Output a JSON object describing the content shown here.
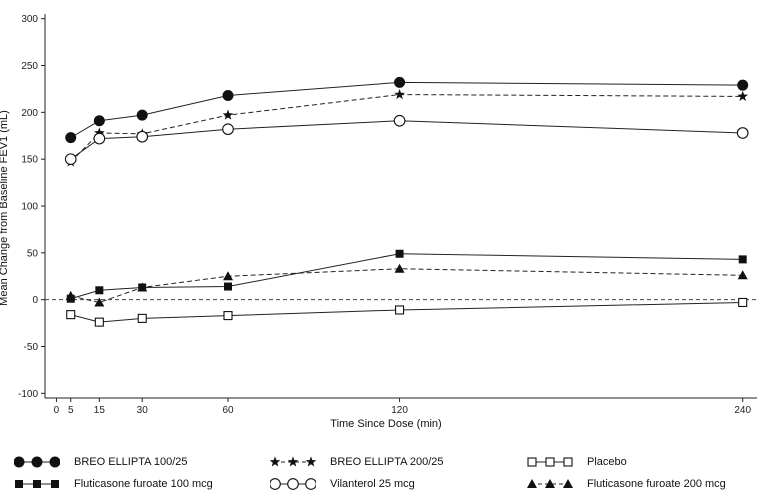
{
  "chart_data": {
    "type": "line",
    "title": "",
    "xlabel": "Time Since Dose (min)",
    "ylabel": "Mean Change from Baseline FEV1 (mL)",
    "x_ticks": [
      0,
      5,
      15,
      30,
      60,
      120,
      240
    ],
    "y_ticks": [
      -100,
      -50,
      0,
      50,
      100,
      150,
      200,
      250,
      300
    ],
    "xlim": [
      -4,
      245
    ],
    "ylim": [
      -105,
      305
    ],
    "grid": false,
    "zero_reference_line": true,
    "legend_position": "bottom",
    "x": [
      5,
      15,
      30,
      60,
      120,
      240
    ],
    "series": [
      {
        "name": "BREO ELLIPTA 100/25",
        "marker": "filled-circle",
        "line": "solid",
        "values": [
          173,
          191,
          197,
          218,
          232,
          229
        ]
      },
      {
        "name": "BREO ELLIPTA 200/25",
        "marker": "star",
        "line": "dashed",
        "values": [
          147,
          178,
          177,
          197,
          219,
          217
        ]
      },
      {
        "name": "Placebo",
        "marker": "open-square",
        "line": "solid",
        "values": [
          -16,
          -24,
          -20,
          -17,
          -11,
          -3
        ]
      },
      {
        "name": "Fluticasone furoate 100 mcg",
        "marker": "filled-square",
        "line": "solid",
        "values": [
          1,
          10,
          13,
          14,
          49,
          43
        ]
      },
      {
        "name": "Vilanterol 25 mcg",
        "marker": "open-circle",
        "line": "solid",
        "values": [
          150,
          172,
          174,
          182,
          191,
          178
        ]
      },
      {
        "name": "Fluticasone furoate 200 mcg",
        "marker": "filled-triangle",
        "line": "dashed",
        "values": [
          4,
          -3,
          13,
          25,
          33,
          26
        ]
      }
    ]
  }
}
